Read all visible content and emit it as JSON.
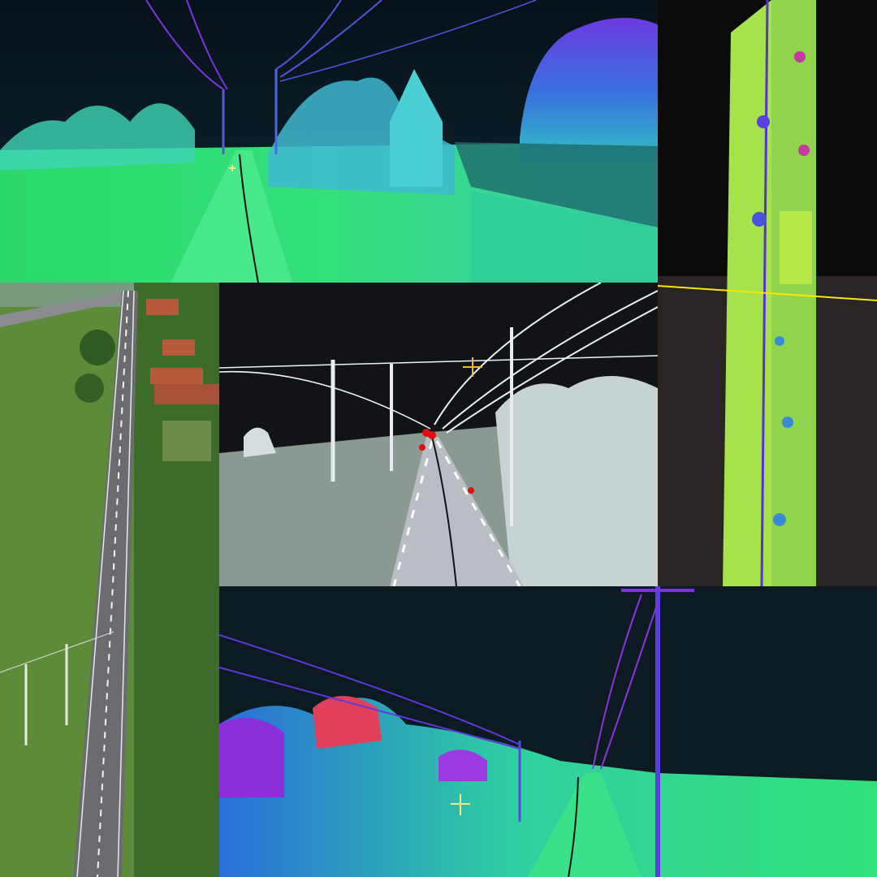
{
  "collage": {
    "panels": [
      {
        "id": "top",
        "description_icon": "lidar-road-view-icon",
        "palette": [
          "#0b1a24",
          "#2de07a",
          "#3ad0a8",
          "#5a46e0",
          "#7c2fd9"
        ]
      },
      {
        "id": "right",
        "description_icon": "lidar-top-down-icon",
        "palette": [
          "#0a0a0a",
          "#9be14a",
          "#3a8bd6",
          "#5a3fe0",
          "#ffe600"
        ]
      },
      {
        "id": "aerial",
        "description_icon": "aerial-photo-icon",
        "palette": [
          "#5f8a3a",
          "#3f6b2a",
          "#8a8c90",
          "#b65a3a"
        ]
      },
      {
        "id": "mid",
        "description_icon": "lidar-greyscale-view-icon",
        "palette": [
          "#121316",
          "#dfe6ec",
          "#9ab0a8",
          "#e01010",
          "#e6c21a"
        ]
      },
      {
        "id": "bottom",
        "description_icon": "lidar-road-view-icon",
        "palette": [
          "#0c1a22",
          "#25d97a",
          "#2a8be0",
          "#5a32e0",
          "#ff3a6a"
        ]
      }
    ]
  }
}
